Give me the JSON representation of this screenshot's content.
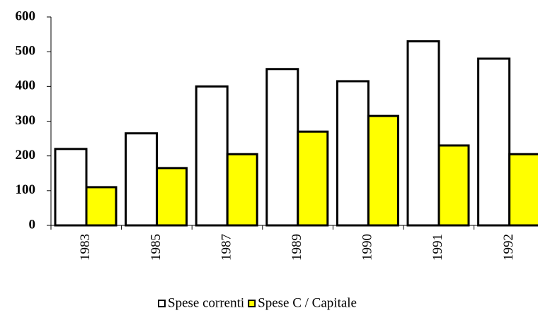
{
  "chart_data": {
    "type": "bar",
    "categories": [
      "1983",
      "1985",
      "1987",
      "1989",
      "1990",
      "1991",
      "1992"
    ],
    "series": [
      {
        "name": "Spese correnti",
        "color": "#ffffff",
        "values": [
          220,
          265,
          400,
          450,
          415,
          530,
          480
        ]
      },
      {
        "name": "Spese C / Capitale",
        "color": "#ffff00",
        "values": [
          110,
          165,
          205,
          270,
          315,
          230,
          205
        ]
      }
    ],
    "ylim": [
      0,
      600
    ],
    "yticks": [
      0,
      100,
      200,
      300,
      400,
      500,
      600
    ],
    "grid": false
  }
}
